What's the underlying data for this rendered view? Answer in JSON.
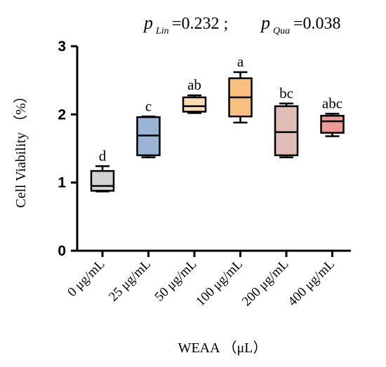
{
  "chart_data": {
    "type": "box",
    "annotation": {
      "p_lin_label": "p",
      "p_lin_sub": "Lin",
      "p_lin_value": "=0.232 ;",
      "p_qua_label": "p",
      "p_qua_sub": "Qua",
      "p_qua_value": "=0.038"
    },
    "ylabel": "Cell Viability （%）",
    "xlabel": "WEAA （μL）",
    "ylim": [
      0,
      3
    ],
    "yticks": [
      "0",
      "1",
      "2",
      "3"
    ],
    "categories": [
      "0 μg/mL",
      "25 μg/mL",
      "50 μg/mL",
      "100 μg/mL",
      "200 μg/mL",
      "400 μg/mL"
    ],
    "boxes": [
      {
        "min": 0.87,
        "q1": 0.88,
        "median": 0.95,
        "q3": 1.17,
        "max": 1.24,
        "letter": "d",
        "color": "#d3d3d3"
      },
      {
        "min": 1.37,
        "q1": 1.4,
        "median": 1.69,
        "q3": 1.96,
        "max": 1.97,
        "letter": "c",
        "color": "#9ab4d6"
      },
      {
        "min": 2.02,
        "q1": 2.04,
        "median": 2.12,
        "q3": 2.25,
        "max": 2.28,
        "letter": "ab",
        "color": "#fbdcb6"
      },
      {
        "min": 1.88,
        "q1": 1.97,
        "median": 2.25,
        "q3": 2.53,
        "max": 2.62,
        "letter": "a",
        "color": "#f9bf7e"
      },
      {
        "min": 1.37,
        "q1": 1.4,
        "median": 1.74,
        "q3": 2.12,
        "max": 2.16,
        "letter": "bc",
        "color": "#dfbcb5"
      },
      {
        "min": 1.68,
        "q1": 1.73,
        "median": 1.9,
        "q3": 1.98,
        "max": 2.01,
        "letter": "abc",
        "color": "#ee9a97"
      }
    ]
  }
}
